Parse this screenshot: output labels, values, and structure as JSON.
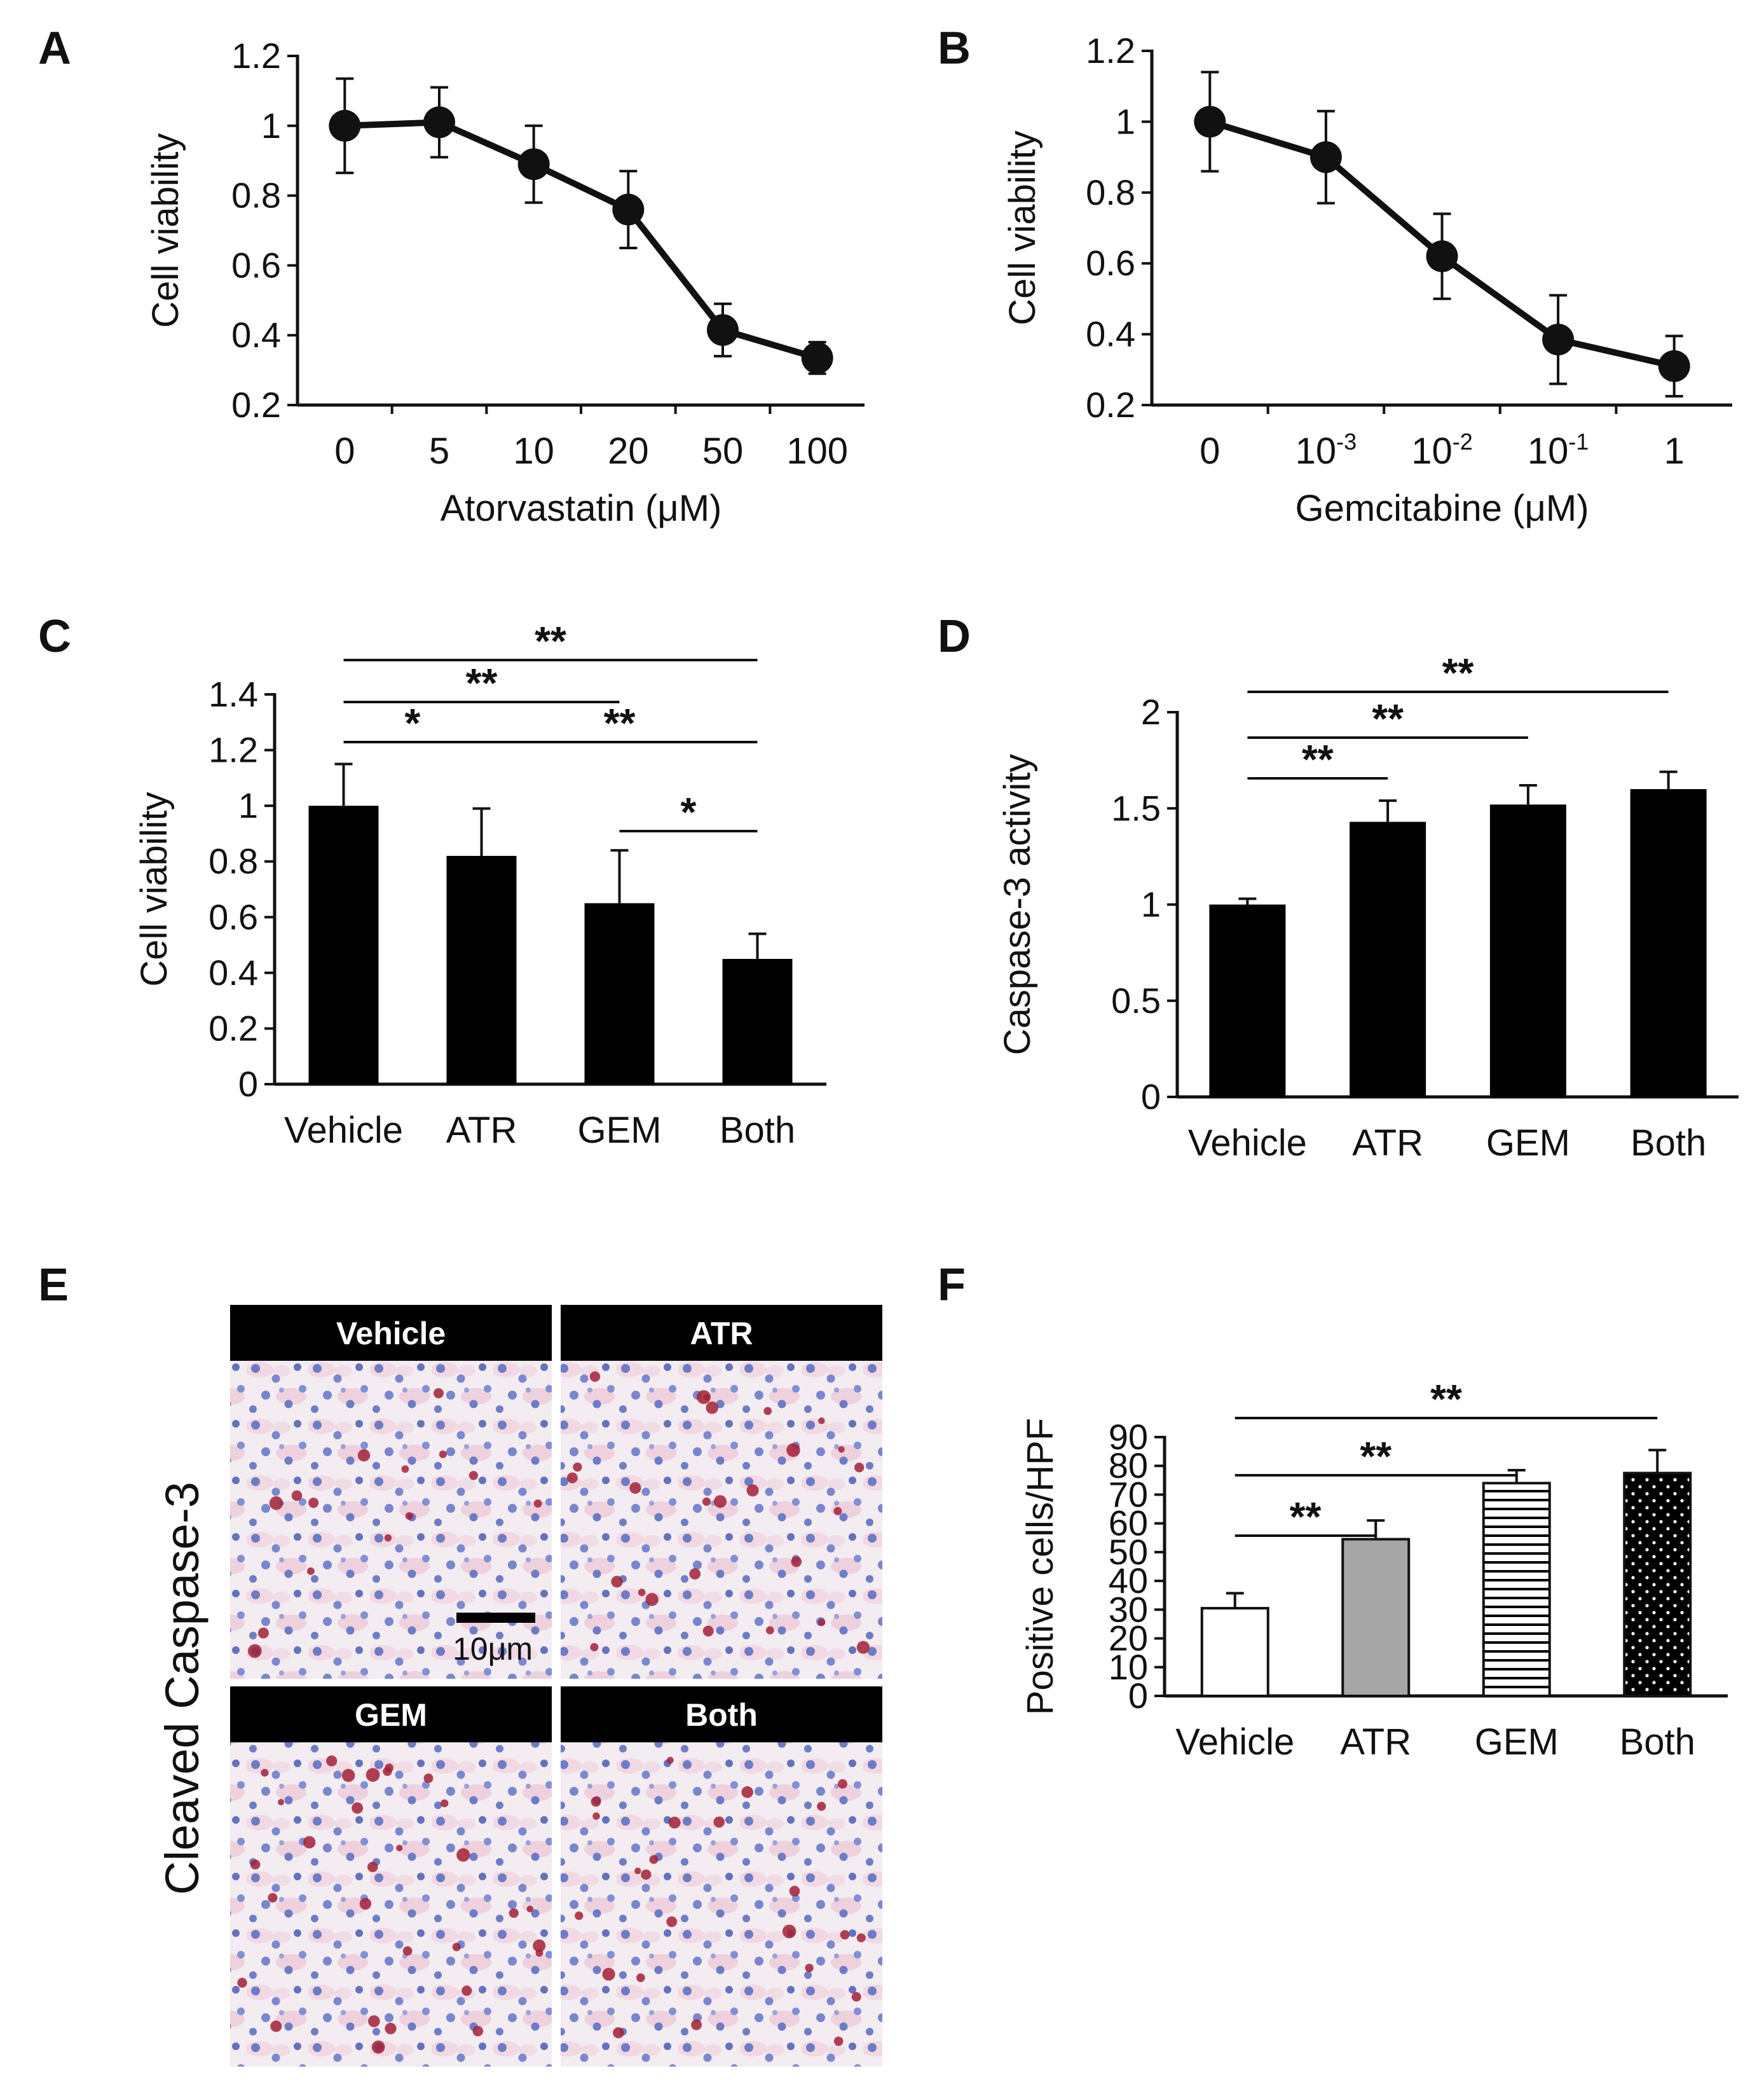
{
  "chart_data": [
    {
      "panel": "A",
      "type": "line",
      "ylabel": "Cell viability",
      "xlabel": "Atorvastatin (μM)",
      "categories": [
        "0",
        "5",
        "10",
        "20",
        "50",
        "100"
      ],
      "values": [
        1.0,
        1.01,
        0.89,
        0.76,
        0.415,
        0.335
      ],
      "errors": [
        0.135,
        0.1,
        0.11,
        0.11,
        0.075,
        0.045
      ],
      "ylim": [
        0.2,
        1.2
      ],
      "yticks": [
        0.2,
        0.4,
        0.6,
        0.8,
        1,
        1.2
      ],
      "ytick_labels": [
        "0.2",
        "0.4",
        "0.6",
        "0.8",
        "1",
        "1.2"
      ]
    },
    {
      "panel": "B",
      "type": "line",
      "ylabel": "Cell viability",
      "xlabel": "Gemcitabine (μM)",
      "categories": [
        {
          "base": "0",
          "exp": ""
        },
        {
          "base": "10",
          "exp": "-3"
        },
        {
          "base": "10",
          "exp": "-2"
        },
        {
          "base": "10",
          "exp": "-1"
        },
        {
          "base": "1",
          "exp": ""
        }
      ],
      "values": [
        1.0,
        0.9,
        0.62,
        0.385,
        0.31
      ],
      "errors": [
        0.14,
        0.13,
        0.12,
        0.125,
        0.085
      ],
      "ylim": [
        0.2,
        1.2
      ],
      "yticks": [
        0.2,
        0.4,
        0.6,
        0.8,
        1,
        1.2
      ],
      "ytick_labels": [
        "0.2",
        "0.4",
        "0.6",
        "0.8",
        "1",
        "1.2"
      ]
    },
    {
      "panel": "C",
      "type": "bar",
      "ylabel": "Cell viability",
      "categories": [
        "Vehicle",
        "ATR",
        "GEM",
        "Both"
      ],
      "values": [
        1.0,
        0.82,
        0.65,
        0.45
      ],
      "errors": [
        0.15,
        0.17,
        0.19,
        0.09
      ],
      "ylim": [
        0,
        1.4
      ],
      "yticks": [
        0,
        0.2,
        0.4,
        0.6,
        0.8,
        1,
        1.2,
        1.4
      ],
      "ytick_labels": [
        "0",
        "0.2",
        "0.4",
        "0.6",
        "0.8",
        "1",
        "1.2",
        "1.4"
      ],
      "significance": [
        {
          "from": 0,
          "to": 3,
          "label": "**"
        },
        {
          "from": 0,
          "to": 2,
          "label": "**"
        },
        {
          "from": 0,
          "to": 1,
          "label": "*"
        },
        {
          "from": 1,
          "to": 3,
          "label": "**"
        },
        {
          "from": 2,
          "to": 3,
          "label": "*"
        }
      ]
    },
    {
      "panel": "D",
      "type": "bar",
      "ylabel": "Caspase-3 activity",
      "categories": [
        "Vehicle",
        "ATR",
        "GEM",
        "Both"
      ],
      "values": [
        1.0,
        1.43,
        1.52,
        1.6
      ],
      "errors": [
        0.03,
        0.11,
        0.1,
        0.09
      ],
      "ylim": [
        0,
        2
      ],
      "yticks": [
        0,
        0.5,
        1,
        1.5,
        2
      ],
      "ytick_labels": [
        "0",
        "0.5",
        "1",
        "1.5",
        "2"
      ],
      "significance": [
        {
          "from": 0,
          "to": 3,
          "label": "**"
        },
        {
          "from": 0,
          "to": 2,
          "label": "**"
        },
        {
          "from": 0,
          "to": 1,
          "label": "**"
        }
      ]
    },
    {
      "panel": "F",
      "type": "bar",
      "ylabel": "Positive cells/HPF",
      "categories": [
        "Vehicle",
        "ATR",
        "GEM",
        "Both"
      ],
      "values": [
        30.5,
        54.5,
        74,
        77.5
      ],
      "errors": [
        5.2,
        6.5,
        4.5,
        8
      ],
      "fills": [
        "white",
        "gray",
        "hstripes",
        "dots"
      ],
      "ylim": [
        0,
        90
      ],
      "yticks": [
        0,
        10,
        20,
        30,
        40,
        50,
        60,
        70,
        80,
        90
      ],
      "ytick_labels": [
        "0",
        "10",
        "20",
        "30",
        "40",
        "50",
        "60",
        "70",
        "80",
        "90"
      ],
      "significance": [
        {
          "from": 0,
          "to": 3,
          "label": "**"
        },
        {
          "from": 0,
          "to": 2,
          "label": "**"
        },
        {
          "from": 0,
          "to": 1,
          "label": "**"
        }
      ]
    }
  ],
  "panel_e": {
    "letter": "E",
    "side_label": "Cleaved Caspase-3",
    "images": [
      "Vehicle",
      "ATR",
      "GEM",
      "Both"
    ],
    "scale_bar_label": "10μm"
  },
  "panel_letters": [
    "A",
    "B",
    "C",
    "D",
    "E",
    "F"
  ],
  "colors": {
    "ink": "#111111",
    "bar_black": "#000000",
    "bar_gray": "#a6a6a6",
    "header_bg": "#000000",
    "micro_bg": "#f2ecf1",
    "nucleus": "#6c7bc4",
    "stain": "#a32036"
  }
}
